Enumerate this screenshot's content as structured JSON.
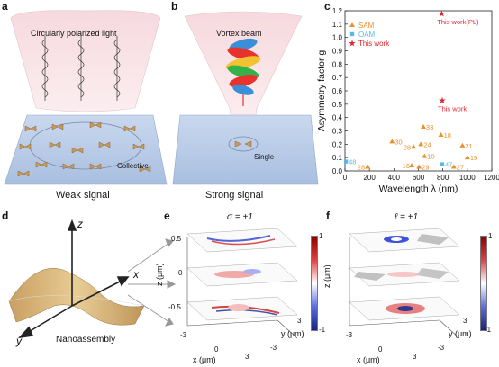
{
  "panels": {
    "a": {
      "letter": "a",
      "top_label": "Circularly polarized light",
      "inner_label": "Collective",
      "bottom_label": "Weak signal"
    },
    "b": {
      "letter": "b",
      "top_label": "Vortex beam",
      "inner_label": "Single",
      "bottom_label": "Strong signal"
    },
    "c": {
      "letter": "c"
    },
    "d": {
      "letter": "d",
      "axis_z": "z",
      "axis_x": "x",
      "axis_y": "y",
      "label": "Nanoassembly"
    },
    "e": {
      "letter": "e",
      "title": "σ = +1",
      "z_ticks": [
        "0.5",
        "0",
        "-0.5"
      ],
      "z_label": "z (μm)",
      "x_label": "x (μm)",
      "y_label": "y (μm)",
      "x_ticks": [
        "-3",
        "0",
        "3"
      ],
      "y_ticks": [
        "-3",
        "3"
      ],
      "cbar_max": "1",
      "cbar_min": "-1"
    },
    "f": {
      "letter": "f",
      "title": "ℓ = +1",
      "z_label": "z (μm)",
      "x_label": "x (μm)",
      "y_label": "y (μm)",
      "x_ticks": [
        "-3",
        "0",
        "3"
      ],
      "y_ticks": [
        "-3",
        "3"
      ],
      "cbar_max": "1",
      "cbar_min": "-1"
    }
  },
  "chart_data": {
    "type": "scatter",
    "xlabel": "Wavelength λ (nm)",
    "ylabel": "Asymmetry factor g",
    "xlim": [
      0,
      1200
    ],
    "ylim": [
      0,
      1.2
    ],
    "xticks": [
      0,
      200,
      400,
      600,
      800,
      1000,
      1200
    ],
    "yticks": [
      0,
      0.1,
      0.2,
      0.3,
      0.4,
      0.5,
      0.6,
      0.7,
      0.8,
      0.9,
      1.0,
      1.1,
      1.2
    ],
    "ytick_labels": [
      "0.0",
      "0.1",
      "0.2",
      "0.3",
      "0.4",
      "0.5",
      "0.6",
      "0.7",
      "0.8",
      "0.9",
      "1.0",
      "1.1",
      "1.2"
    ],
    "grid": false,
    "legend_position": "top-left",
    "series": [
      {
        "name": "SAM",
        "color": "#e8922e",
        "marker": "triangle",
        "points": [
          {
            "label": "33",
            "x": 640,
            "y": 0.33
          },
          {
            "label": "30",
            "x": 385,
            "y": 0.22
          },
          {
            "label": "28",
            "x": 560,
            "y": 0.18
          },
          {
            "label": "24",
            "x": 620,
            "y": 0.2
          },
          {
            "label": "18",
            "x": 785,
            "y": 0.27
          },
          {
            "label": "21",
            "x": 960,
            "y": 0.19
          },
          {
            "label": "10",
            "x": 650,
            "y": 0.11
          },
          {
            "label": "15",
            "x": 1000,
            "y": 0.1
          },
          {
            "label": "16",
            "x": 545,
            "y": 0.04
          },
          {
            "label": "29",
            "x": 605,
            "y": 0.03
          },
          {
            "label": "27",
            "x": 890,
            "y": 0.03
          },
          {
            "label": "28",
            "x": 185,
            "y": 0.03
          }
        ]
      },
      {
        "name": "OAM",
        "color": "#5fb9e0",
        "marker": "square",
        "points": [
          {
            "label": "48",
            "x": 8,
            "y": 0.07
          },
          {
            "label": "47",
            "x": 795,
            "y": 0.05
          }
        ]
      },
      {
        "name": "This work",
        "color": "#e0262d",
        "marker": "star",
        "points": [
          {
            "label": "This work(PL)",
            "x": 790,
            "y": 1.18
          },
          {
            "label": "This work",
            "x": 795,
            "y": 0.53
          }
        ]
      }
    ]
  }
}
